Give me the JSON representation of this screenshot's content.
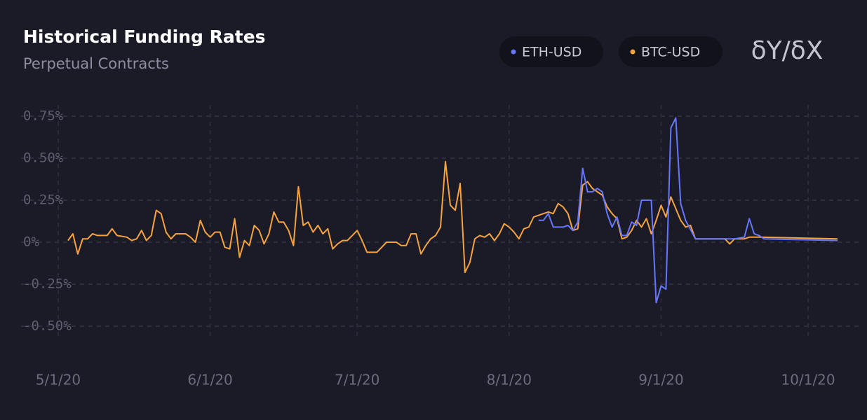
{
  "chart_data": {
    "type": "line",
    "title": "Historical Funding Rates",
    "subtitle": "Perpetual Contracts",
    "logo": "δY/δX",
    "series": [
      {
        "name": "ETH-USD",
        "color": "#6677ff",
        "x": [
          "8/7/20",
          "8/8/20",
          "8/9/20",
          "8/10/20",
          "8/11/20",
          "8/12/20",
          "8/13/20",
          "8/14/20",
          "8/15/20",
          "8/16/20",
          "8/17/20",
          "8/18/20",
          "8/19/20",
          "8/20/20",
          "8/21/20",
          "8/22/20",
          "8/23/20",
          "8/24/20",
          "8/25/20",
          "8/26/20",
          "8/27/20",
          "8/28/20",
          "8/29/20",
          "8/30/20",
          "8/31/20",
          "9/1/20",
          "9/2/20",
          "9/3/20",
          "9/4/20",
          "9/5/20",
          "9/6/20",
          "9/8/20",
          "9/16/20",
          "9/18/20",
          "9/19/20",
          "9/20/20",
          "9/21/20",
          "9/22/20",
          "10/7/20"
        ],
        "values": [
          0.13,
          0.13,
          0.17,
          0.09,
          0.09,
          0.09,
          0.1,
          0.07,
          0.12,
          0.44,
          0.3,
          0.3,
          0.32,
          0.3,
          0.17,
          0.09,
          0.15,
          0.04,
          0.04,
          0.12,
          0.1,
          0.25,
          0.25,
          0.25,
          -0.36,
          -0.26,
          -0.28,
          0.68,
          0.74,
          0.23,
          0.13,
          0.02,
          0.02,
          0.03,
          0.14,
          0.05,
          0.04,
          0.02,
          0.01
        ]
      },
      {
        "name": "BTC-USD",
        "color": "#f6a33f",
        "x": [
          "5/3/20",
          "5/4/20",
          "5/5/20",
          "5/6/20",
          "5/7/20",
          "5/8/20",
          "5/9/20",
          "5/11/20",
          "5/12/20",
          "5/13/20",
          "5/15/20",
          "5/16/20",
          "5/17/20",
          "5/18/20",
          "5/19/20",
          "5/20/20",
          "5/21/20",
          "5/22/20",
          "5/23/20",
          "5/24/20",
          "5/25/20",
          "5/26/20",
          "5/27/20",
          "5/28/20",
          "5/29/20",
          "5/30/20",
          "5/31/20",
          "6/1/20",
          "6/2/20",
          "6/3/20",
          "6/4/20",
          "6/5/20",
          "6/6/20",
          "6/7/20",
          "6/8/20",
          "6/9/20",
          "6/10/20",
          "6/11/20",
          "6/12/20",
          "6/13/20",
          "6/14/20",
          "6/15/20",
          "6/16/20",
          "6/17/20",
          "6/18/20",
          "6/19/20",
          "6/20/20",
          "6/21/20",
          "6/22/20",
          "6/23/20",
          "6/24/20",
          "6/25/20",
          "6/26/20",
          "6/27/20",
          "6/28/20",
          "6/29/20",
          "6/30/20",
          "7/1/20",
          "7/2/20",
          "7/3/20",
          "7/4/20",
          "7/5/20",
          "7/6/20",
          "7/7/20",
          "7/8/20",
          "7/9/20",
          "7/10/20",
          "7/11/20",
          "7/12/20",
          "7/13/20",
          "7/14/20",
          "7/15/20",
          "7/16/20",
          "7/17/20",
          "7/18/20",
          "7/19/20",
          "7/20/20",
          "7/21/20",
          "7/22/20",
          "7/23/20",
          "7/24/20",
          "7/25/20",
          "7/26/20",
          "7/27/20",
          "7/28/20",
          "7/29/20",
          "7/30/20",
          "7/31/20",
          "8/1/20",
          "8/2/20",
          "8/3/20",
          "8/4/20",
          "8/5/20",
          "8/6/20",
          "8/7/20",
          "8/8/20",
          "8/9/20",
          "8/10/20",
          "8/11/20",
          "8/12/20",
          "8/13/20",
          "8/14/20",
          "8/15/20",
          "8/16/20",
          "8/17/20",
          "8/18/20",
          "8/19/20",
          "8/20/20",
          "8/21/20",
          "8/22/20",
          "8/23/20",
          "8/24/20",
          "8/25/20",
          "8/26/20",
          "8/27/20",
          "8/28/20",
          "8/29/20",
          "8/30/20",
          "8/31/20",
          "9/1/20",
          "9/2/20",
          "9/3/20",
          "9/4/20",
          "9/5/20",
          "9/6/20",
          "9/7/20",
          "9/8/20",
          "9/14/20",
          "9/15/20",
          "9/16/20",
          "9/18/20",
          "9/19/20",
          "9/21/20",
          "10/7/20"
        ],
        "values": [
          0.01,
          0.05,
          -0.07,
          0.02,
          0.02,
          0.05,
          0.04,
          0.04,
          0.08,
          0.04,
          0.03,
          0.01,
          0.02,
          0.07,
          0.01,
          0.04,
          0.19,
          0.17,
          0.06,
          0.02,
          0.05,
          0.05,
          0.05,
          0.03,
          0,
          0.13,
          0.06,
          0.03,
          0.06,
          0.06,
          -0.03,
          -0.04,
          0.14,
          -0.09,
          0.01,
          -0.02,
          0.1,
          0.07,
          -0.01,
          0.05,
          0.18,
          0.12,
          0.12,
          0.07,
          -0.02,
          0.33,
          0.1,
          0.12,
          0.06,
          0.1,
          0.05,
          0.08,
          -0.04,
          -0.01,
          0.01,
          0.01,
          0.04,
          0.07,
          0.01,
          -0.06,
          -0.06,
          -0.06,
          -0.03,
          0,
          0,
          0,
          -0.02,
          -0.02,
          0.05,
          0.05,
          -0.07,
          -0.02,
          0.02,
          0.04,
          0.09,
          0.48,
          0.22,
          0.19,
          0.35,
          -0.18,
          -0.12,
          0.02,
          0.04,
          0.03,
          0.05,
          0.01,
          0.05,
          0.11,
          0.09,
          0.06,
          0.02,
          0.08,
          0.09,
          0.15,
          0.16,
          0.17,
          0.18,
          0.17,
          0.23,
          0.21,
          0.17,
          0.07,
          0.08,
          0.34,
          0.36,
          0.32,
          0.3,
          0.28,
          0.21,
          0.17,
          0.14,
          0.02,
          0.03,
          0.07,
          0.13,
          0.09,
          0.14,
          0.05,
          0.13,
          0.22,
          0.15,
          0.27,
          0.2,
          0.13,
          0.09,
          0.1,
          0.02,
          0.02,
          -0.01,
          0.02,
          0.02,
          0.03,
          0.03,
          0.02
        ]
      }
    ],
    "xlim": [
      "4/28/20",
      "10/8/20"
    ],
    "xticks": [
      "5/1/20",
      "6/1/20",
      "7/1/20",
      "8/1/20",
      "9/1/20",
      "10/1/20"
    ],
    "ylim": [
      -0.5,
      0.75
    ],
    "yticks": [
      {
        "value": 0.75,
        "label": "0.75%"
      },
      {
        "value": 0.5,
        "label": "0.50%"
      },
      {
        "value": 0.25,
        "label": "0.25%"
      },
      {
        "value": 0,
        "label": "0%"
      },
      {
        "value": -0.25,
        "label": "-0.25%"
      },
      {
        "value": -0.5,
        "label": "-0.50%"
      }
    ],
    "grid": true
  }
}
